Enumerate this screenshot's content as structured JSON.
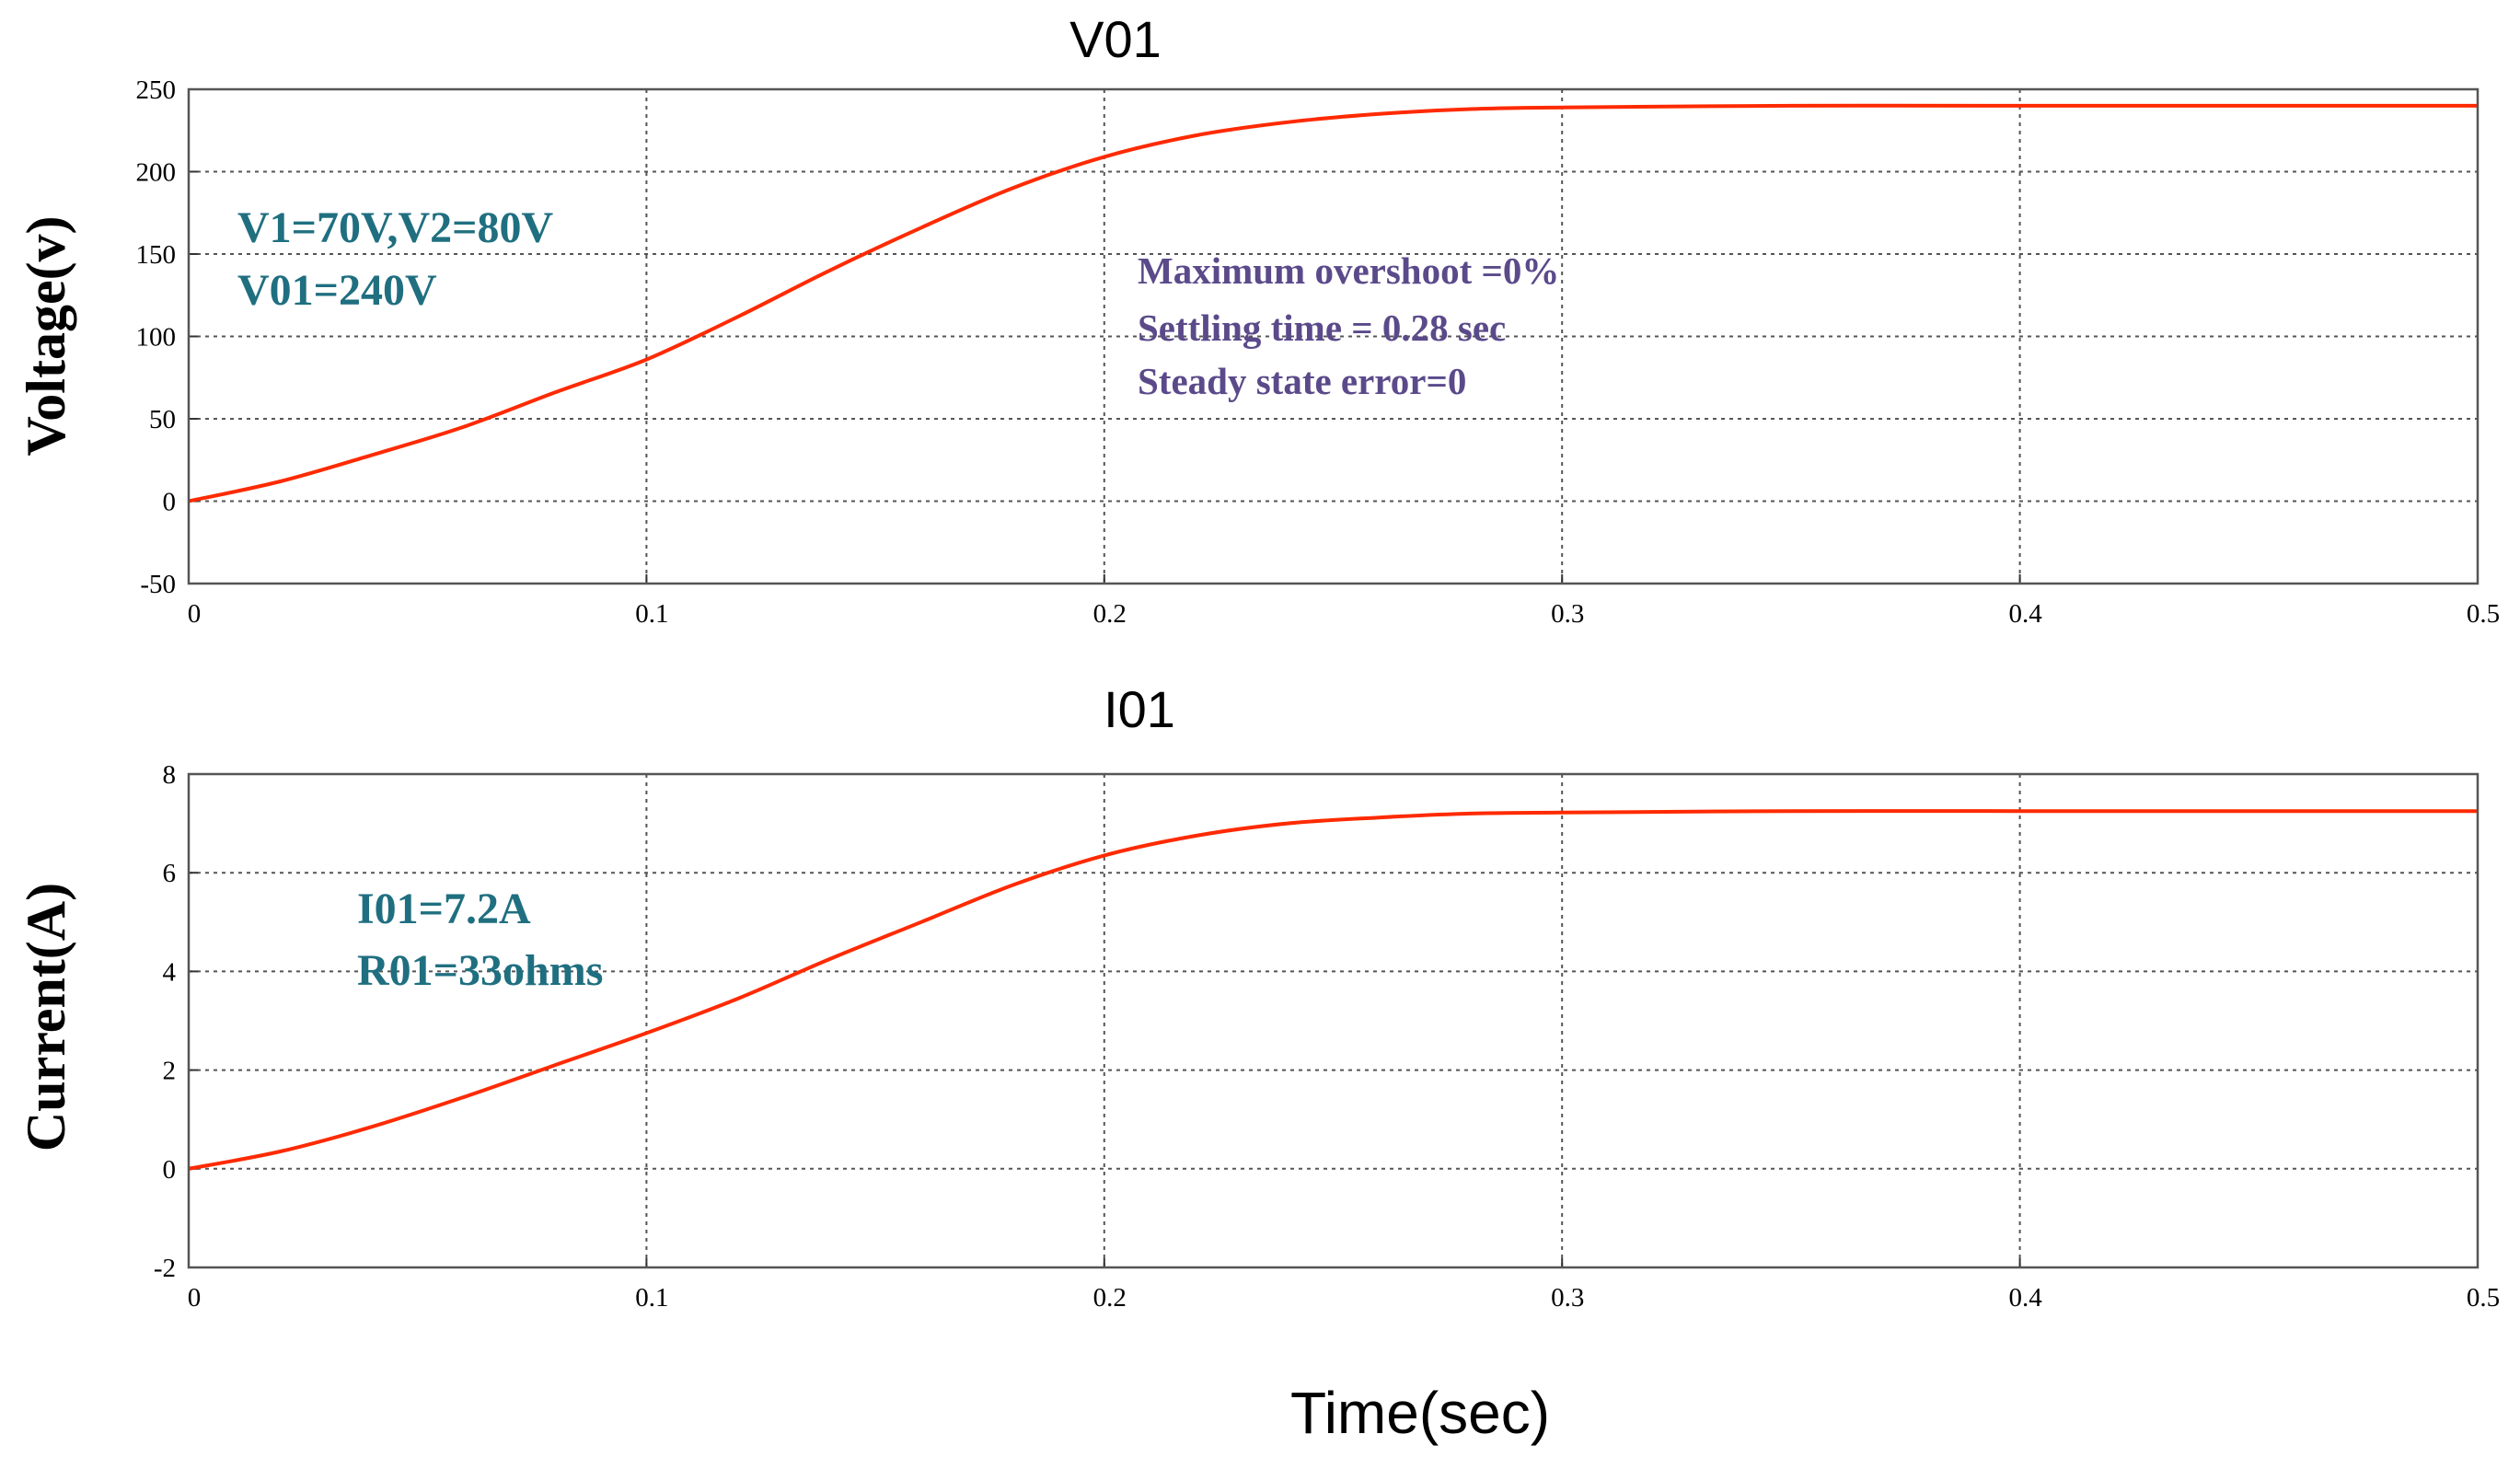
{
  "figure": {
    "xlabel": "Time(sec)"
  },
  "chart_data": [
    {
      "type": "line",
      "title": "V01",
      "xlabel": "",
      "ylabel": "Voltage(v)",
      "xlim": [
        0,
        0.5
      ],
      "ylim": [
        -50,
        250
      ],
      "x_ticks": [
        "0",
        "0.1",
        "0.2",
        "0.3",
        "0.4",
        "0.5"
      ],
      "y_ticks": [
        "250",
        "200",
        "150",
        "100",
        "50",
        "0",
        "-50"
      ],
      "grid": true,
      "series": [
        {
          "color": "#ff2a00",
          "x": [
            0,
            0.02,
            0.04,
            0.06,
            0.08,
            0.1,
            0.12,
            0.14,
            0.16,
            0.18,
            0.2,
            0.22,
            0.24,
            0.26,
            0.28,
            0.3,
            0.35,
            0.4,
            0.45,
            0.5
          ],
          "y": [
            0,
            12,
            28,
            45,
            66,
            86,
            112,
            140,
            166,
            190,
            209,
            222,
            230,
            235,
            238,
            239,
            240,
            240,
            240,
            240
          ]
        }
      ],
      "annotations": {
        "params": [
          "V1=70V,V2=80V",
          "V01=240V"
        ],
        "metrics": [
          "Maximum overshoot =0%",
          "Settling time = 0.28 sec",
          "Steady state error=0"
        ]
      }
    },
    {
      "type": "line",
      "title": "I01",
      "xlabel": "",
      "ylabel": "Current(A)",
      "xlim": [
        0,
        0.5
      ],
      "ylim": [
        -2,
        8
      ],
      "x_ticks": [
        "0",
        "0.1",
        "0.2",
        "0.3",
        "0.4",
        "0.5"
      ],
      "y_ticks": [
        "8",
        "6",
        "4",
        "2",
        "0",
        "-2"
      ],
      "grid": true,
      "series": [
        {
          "color": "#ff2a00",
          "x": [
            0,
            0.02,
            0.04,
            0.06,
            0.08,
            0.1,
            0.12,
            0.14,
            0.16,
            0.18,
            0.2,
            0.22,
            0.24,
            0.26,
            0.28,
            0.3,
            0.35,
            0.4,
            0.45,
            0.5
          ],
          "y": [
            0,
            0.35,
            0.85,
            1.45,
            2.1,
            2.75,
            3.45,
            4.25,
            5.0,
            5.75,
            6.35,
            6.75,
            7.0,
            7.12,
            7.2,
            7.22,
            7.25,
            7.25,
            7.25,
            7.25
          ]
        }
      ],
      "annotations": {
        "params": [
          "I01=7.2A",
          "R01=33ohms"
        ]
      }
    }
  ]
}
